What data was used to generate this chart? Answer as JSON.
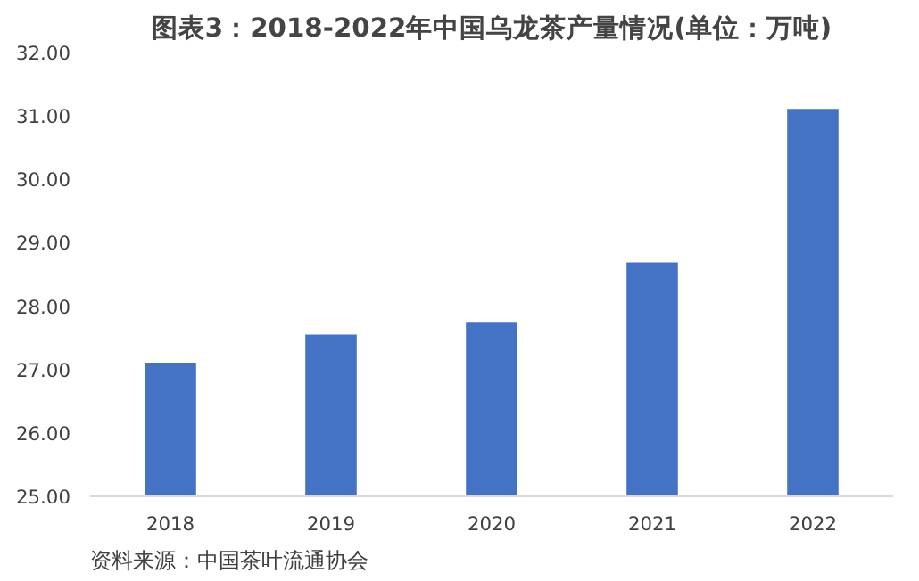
{
  "chart_data": {
    "type": "bar",
    "title": "图表3：2018-2022年中国乌龙茶产量情况(单位：万吨)",
    "categories": [
      "2018",
      "2019",
      "2020",
      "2021",
      "2022"
    ],
    "values": [
      27.11,
      27.55,
      27.75,
      28.69,
      31.11
    ],
    "color": "#4472c4",
    "ylim": [
      25,
      32
    ],
    "yticks": [
      {
        "value": 25,
        "label": "25.00"
      },
      {
        "value": 26,
        "label": "26.00"
      },
      {
        "value": 27,
        "label": "27.00"
      },
      {
        "value": 28,
        "label": "28.00"
      },
      {
        "value": 29,
        "label": "29.00"
      },
      {
        "value": 30,
        "label": "30.00"
      },
      {
        "value": 31,
        "label": "31.00"
      },
      {
        "value": 32,
        "label": "32.00"
      }
    ],
    "grid": false,
    "annotations": [
      "资料来源：中国茶叶流通协会"
    ]
  }
}
